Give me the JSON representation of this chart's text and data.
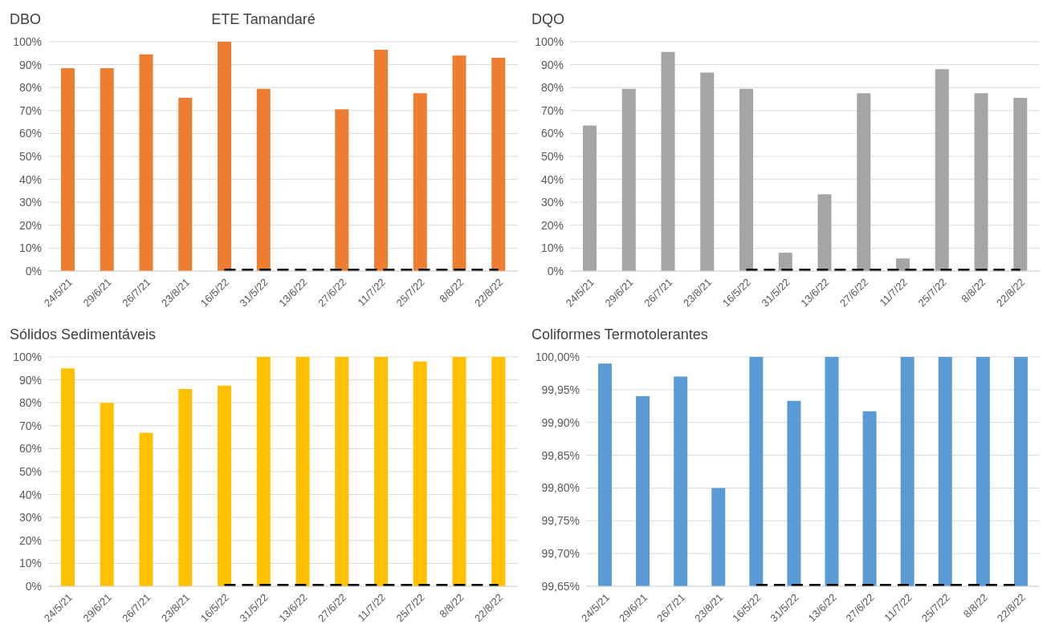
{
  "chart_data": [
    {
      "type": "bar",
      "title": "DBO",
      "subtitle": "ETE Tamandaré",
      "categories": [
        "24/5/21",
        "29/6/21",
        "26/7/21",
        "23/8/21",
        "16/5/22",
        "31/5/22",
        "13/6/22",
        "27/6/22",
        "11/7/22",
        "25/7/22",
        "8/8/22",
        "22/8/22"
      ],
      "series": [
        {
          "color": "#ed7d31",
          "values": [
            88.5,
            88.5,
            94.5,
            75.5,
            100,
            79.5,
            null,
            70.5,
            96.5,
            77.5,
            94,
            93
          ]
        },
        {
          "type": "line",
          "color": "#000000",
          "line_style": "dashed",
          "values": [
            null,
            null,
            null,
            null,
            0,
            0,
            0,
            0,
            0,
            0,
            0,
            0
          ]
        }
      ],
      "ylim": [
        0,
        100
      ],
      "yticks": [
        {
          "value": 0,
          "label": "0%"
        },
        {
          "value": 10,
          "label": "10%"
        },
        {
          "value": 20,
          "label": "20%"
        },
        {
          "value": 30,
          "label": "30%"
        },
        {
          "value": 40,
          "label": "40%"
        },
        {
          "value": 50,
          "label": "50%"
        },
        {
          "value": 60,
          "label": "60%"
        },
        {
          "value": 70,
          "label": "70%"
        },
        {
          "value": 80,
          "label": "80%"
        },
        {
          "value": 90,
          "label": "90%"
        },
        {
          "value": 100,
          "label": "100%"
        }
      ],
      "grid": "y"
    },
    {
      "type": "bar",
      "title": "DQO",
      "categories": [
        "24/5/21",
        "29/6/21",
        "26/7/21",
        "23/8/21",
        "16/5/22",
        "31/5/22",
        "13/6/22",
        "27/6/22",
        "11/7/22",
        "25/7/22",
        "8/8/22",
        "22/8/22"
      ],
      "series": [
        {
          "color": "#a5a5a5",
          "values": [
            63.5,
            79.5,
            95.5,
            86.5,
            79.5,
            8,
            33.5,
            77.5,
            5.5,
            88,
            77.5,
            75.5
          ]
        },
        {
          "type": "line",
          "color": "#000000",
          "line_style": "dashed",
          "values": [
            null,
            null,
            null,
            null,
            0,
            0,
            0,
            0,
            0,
            0,
            0,
            0
          ]
        }
      ],
      "ylim": [
        0,
        100
      ],
      "yticks": [
        {
          "value": 0,
          "label": "0%"
        },
        {
          "value": 10,
          "label": "10%"
        },
        {
          "value": 20,
          "label": "20%"
        },
        {
          "value": 30,
          "label": "30%"
        },
        {
          "value": 40,
          "label": "40%"
        },
        {
          "value": 50,
          "label": "50%"
        },
        {
          "value": 60,
          "label": "60%"
        },
        {
          "value": 70,
          "label": "70%"
        },
        {
          "value": 80,
          "label": "80%"
        },
        {
          "value": 90,
          "label": "90%"
        },
        {
          "value": 100,
          "label": "100%"
        }
      ],
      "grid": "y"
    },
    {
      "type": "bar",
      "title": "Sólidos Sedimentáveis",
      "categories": [
        "24/5/21",
        "29/6/21",
        "26/7/21",
        "23/8/21",
        "16/5/22",
        "31/5/22",
        "13/6/22",
        "27/6/22",
        "11/7/22",
        "25/7/22",
        "8/8/22",
        "22/8/22"
      ],
      "series": [
        {
          "color": "#ffc000",
          "values": [
            95,
            80,
            67,
            86,
            87.5,
            100,
            100,
            100,
            100,
            98,
            100,
            100
          ]
        },
        {
          "type": "line",
          "color": "#000000",
          "line_style": "dashed",
          "values": [
            null,
            null,
            null,
            null,
            0,
            0,
            0,
            0,
            0,
            0,
            0,
            0
          ]
        }
      ],
      "ylim": [
        0,
        100
      ],
      "yticks": [
        {
          "value": 0,
          "label": "0%"
        },
        {
          "value": 10,
          "label": "10%"
        },
        {
          "value": 20,
          "label": "20%"
        },
        {
          "value": 30,
          "label": "30%"
        },
        {
          "value": 40,
          "label": "40%"
        },
        {
          "value": 50,
          "label": "50%"
        },
        {
          "value": 60,
          "label": "60%"
        },
        {
          "value": 70,
          "label": "70%"
        },
        {
          "value": 80,
          "label": "80%"
        },
        {
          "value": 90,
          "label": "90%"
        },
        {
          "value": 100,
          "label": "100%"
        }
      ],
      "grid": "y"
    },
    {
      "type": "bar",
      "title": "Coliformes Termotolerantes",
      "categories": [
        "24/5/21",
        "29/6/21",
        "26/7/21",
        "23/8/21",
        "16/5/22",
        "31/5/22",
        "13/6/22",
        "27/6/22",
        "11/7/22",
        "25/7/22",
        "8/8/22",
        "22/8/22"
      ],
      "series": [
        {
          "color": "#5b9bd5",
          "values": [
            99.99,
            99.94,
            99.97,
            99.8,
            100,
            99.933,
            100,
            99.917,
            100,
            100,
            100,
            100
          ]
        },
        {
          "type": "line",
          "color": "#000000",
          "line_style": "dashed",
          "values": [
            null,
            null,
            null,
            null,
            99.65,
            99.65,
            99.65,
            99.65,
            99.65,
            99.65,
            99.65,
            99.65
          ]
        }
      ],
      "ylim": [
        99.65,
        100
      ],
      "yticks": [
        {
          "value": 99.65,
          "label": "99,65%"
        },
        {
          "value": 99.7,
          "label": "99,70%"
        },
        {
          "value": 99.75,
          "label": "99,75%"
        },
        {
          "value": 99.8,
          "label": "99,80%"
        },
        {
          "value": 99.85,
          "label": "99,85%"
        },
        {
          "value": 99.9,
          "label": "99,90%"
        },
        {
          "value": 99.95,
          "label": "99,95%"
        },
        {
          "value": 100,
          "label": "100,00%"
        }
      ],
      "grid": "y"
    }
  ]
}
